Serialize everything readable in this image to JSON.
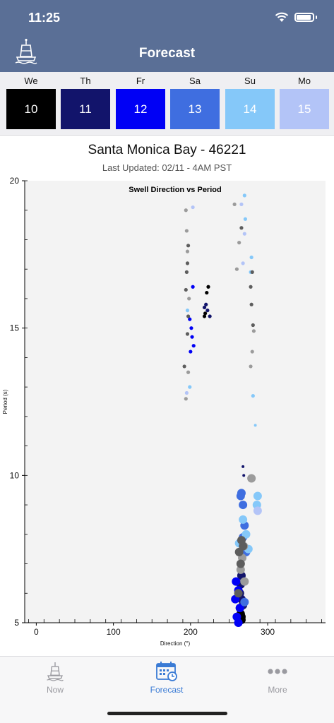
{
  "status_bar": {
    "time": "11:25"
  },
  "header": {
    "title": "Forecast",
    "buoy_icon": "buoy-icon"
  },
  "days": [
    {
      "label": "We",
      "date": "10",
      "color": "#000000"
    },
    {
      "label": "Th",
      "date": "11",
      "color": "#12146b"
    },
    {
      "label": "Fr",
      "date": "12",
      "color": "#0000f5"
    },
    {
      "label": "Sa",
      "date": "13",
      "color": "#3f6ee0"
    },
    {
      "label": "Su",
      "date": "14",
      "color": "#85c8f9"
    },
    {
      "label": "Mo",
      "date": "15",
      "color": "#b3c4f7"
    }
  ],
  "station": {
    "name": "Santa Monica Bay - 46221",
    "updated": "Last Updated: 02/11 - 4AM PST"
  },
  "chart_data": {
    "type": "scatter",
    "title": "Swell Direction vs Period",
    "xlabel": "Direction (°)",
    "ylabel": "Period (s)",
    "xlim": [
      -15,
      375
    ],
    "ylim": [
      5,
      20
    ],
    "xticks": [
      0,
      100,
      200,
      300
    ],
    "yticks": [
      5,
      10,
      15,
      20
    ],
    "background": "#f3f3f3",
    "series": [
      {
        "color": "#000000",
        "points": [
          [
            266,
            5.1
          ],
          [
            265,
            5.3
          ],
          [
            264,
            5.5
          ],
          [
            219,
            15.5
          ],
          [
            218,
            15.4
          ],
          [
            221,
            16.2
          ],
          [
            223,
            16.4
          ],
          [
            266,
            5.2
          ]
        ]
      },
      {
        "color": "#12146b",
        "points": [
          [
            268,
            5.6
          ],
          [
            266,
            5.8
          ],
          [
            264,
            6.0
          ],
          [
            265,
            6.3
          ],
          [
            266,
            6.6
          ],
          [
            218,
            15.7
          ],
          [
            220,
            15.8
          ],
          [
            222,
            15.6
          ],
          [
            225,
            15.4
          ],
          [
            268,
            10.3
          ],
          [
            269,
            10.0
          ]
        ]
      },
      {
        "color": "#0000f5",
        "points": [
          [
            258,
            5.8
          ],
          [
            262,
            6.1
          ],
          [
            259,
            6.4
          ],
          [
            264,
            5.5
          ],
          [
            260,
            5.2
          ],
          [
            203,
            16.4
          ],
          [
            199,
            15.3
          ],
          [
            201,
            15.0
          ],
          [
            202,
            14.7
          ],
          [
            204,
            14.4
          ],
          [
            200,
            14.2
          ],
          [
            262,
            5.0
          ]
        ]
      },
      {
        "color": "#3f6ee0",
        "points": [
          [
            270,
            5.7
          ],
          [
            268,
            7.9
          ],
          [
            270,
            8.3
          ],
          [
            266,
            9.4
          ],
          [
            268,
            9.0
          ],
          [
            265,
            9.3
          ],
          [
            272,
            7.4
          ]
        ]
      },
      {
        "color": "#85c8f9",
        "points": [
          [
            272,
            8.0
          ],
          [
            275,
            7.5
          ],
          [
            268,
            8.5
          ],
          [
            263,
            7.7
          ],
          [
            284,
            11.7
          ],
          [
            281,
            12.7
          ],
          [
            278,
            16.9
          ],
          [
            279,
            17.4
          ],
          [
            271,
            18.7
          ],
          [
            270,
            19.5
          ],
          [
            287,
            9.3
          ],
          [
            286,
            9.0
          ],
          [
            199,
            13.0
          ],
          [
            196,
            15.6
          ]
        ]
      },
      {
        "color": "#b3c4f7",
        "points": [
          [
            287,
            8.8
          ],
          [
            268,
            17.2
          ],
          [
            270,
            18.2
          ],
          [
            266,
            19.2
          ],
          [
            195,
            12.8
          ],
          [
            203,
            19.1
          ]
        ]
      },
      {
        "color": "#9b9b9b",
        "points": [
          [
            265,
            6.8
          ],
          [
            267,
            7.2
          ],
          [
            269,
            7.6
          ],
          [
            270,
            6.4
          ],
          [
            279,
            9.9
          ],
          [
            278,
            13.7
          ],
          [
            280,
            14.2
          ],
          [
            282,
            14.9
          ],
          [
            198,
            16.0
          ],
          [
            196,
            17.6
          ],
          [
            195,
            18.3
          ],
          [
            194,
            19.0
          ],
          [
            260,
            17.0
          ],
          [
            263,
            17.9
          ],
          [
            257,
            19.2
          ],
          [
            197,
            13.5
          ],
          [
            194,
            12.6
          ]
        ]
      },
      {
        "color": "#5d5d5d",
        "points": [
          [
            262,
            6.0
          ],
          [
            265,
            7.0
          ],
          [
            268,
            7.6
          ],
          [
            263,
            7.4
          ],
          [
            266,
            7.8
          ],
          [
            281,
            15.1
          ],
          [
            279,
            15.8
          ],
          [
            278,
            16.4
          ],
          [
            280,
            16.9
          ],
          [
            196,
            14.8
          ],
          [
            197,
            15.4
          ],
          [
            194,
            16.3
          ],
          [
            195,
            16.9
          ],
          [
            196,
            17.2
          ],
          [
            197,
            17.8
          ],
          [
            192,
            13.7
          ],
          [
            266,
            18.4
          ]
        ]
      }
    ]
  },
  "tabs": [
    {
      "label": "Now",
      "icon": "buoy-icon"
    },
    {
      "label": "Forecast",
      "icon": "calendar-icon"
    },
    {
      "label": "More",
      "icon": "more-dots-icon"
    }
  ]
}
